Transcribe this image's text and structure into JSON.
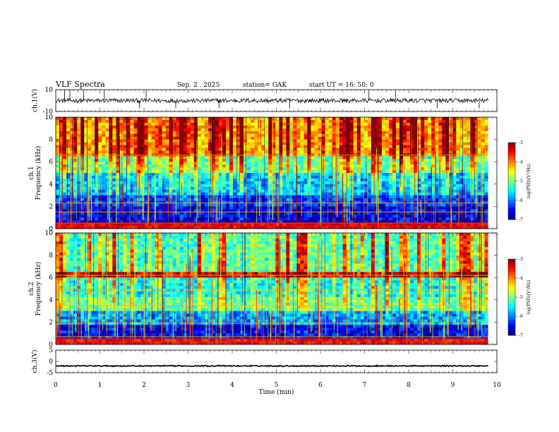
{
  "header": {
    "title": "VLF  Spectra",
    "date": "Sep. 2   . 2025",
    "station": "station= GAK",
    "start": "start  UT  =    16: 50: 0"
  },
  "chart_data": [
    {
      "type": "line",
      "name": "ch.1 waveform",
      "ylabel": "ch.1(V)",
      "ylim": [
        -10,
        10
      ],
      "yticks": [
        "10",
        "-10"
      ],
      "baseline_v": 0,
      "noise_amplitude_v": 2,
      "spikes_min": [
        0.2,
        0.32,
        0.63,
        1.1,
        1.9,
        2.05,
        2.72,
        3.7,
        5.3,
        7.1,
        7.7,
        8.65,
        9.6
      ],
      "xlim": [
        0,
        10
      ]
    },
    {
      "type": "heatmap",
      "name": "ch.1 spectrogram",
      "ylabel": "ch.1\nFrequency (kHz)",
      "ylabel_lines": [
        "ch.1",
        "Frequency (kHz)"
      ],
      "ylim": [
        0,
        10
      ],
      "yticks": [
        "0",
        "2",
        "4",
        "6",
        "8",
        "10"
      ],
      "xlim": [
        0,
        10
      ],
      "data_end_min": 9.8,
      "colorbar": {
        "label": "log(PSD)(V²/Hz)",
        "range": [
          -7,
          -3
        ],
        "ticks": [
          "-3",
          "-4",
          "-5",
          "-6",
          "-7"
        ]
      },
      "background_log_psd": [
        {
          "kHz": [
            0,
            0.6
          ],
          "level": -3.6
        },
        {
          "kHz": [
            0.6,
            2.0
          ],
          "level": -6.7
        },
        {
          "kHz": [
            2.0,
            3.0
          ],
          "level": -6.4
        },
        {
          "kHz": [
            3.0,
            5.0
          ],
          "level": -5.9
        },
        {
          "kHz": [
            5.0,
            6.5
          ],
          "level": -5.3
        },
        {
          "kHz": [
            6.5,
            10.0
          ],
          "level": -4.4
        }
      ],
      "lines_kHz": [
        0.5,
        1.5,
        2.3,
        6.6
      ],
      "sferic_density": 0.55
    },
    {
      "type": "heatmap",
      "name": "ch.2 spectrogram",
      "ylabel": "ch.2\nFrequency (kHz)",
      "ylabel_lines": [
        "ch.2",
        "Frequency (kHz)"
      ],
      "ylim": [
        0,
        10
      ],
      "yticks": [
        "0",
        "2",
        "4",
        "6",
        "8",
        "10"
      ],
      "xlim": [
        0,
        10
      ],
      "data_end_min": 9.8,
      "colorbar": {
        "label": "log(PSD)(V²/Hz)",
        "range": [
          -7,
          -3
        ],
        "ticks": [
          "-3",
          "-4",
          "-5",
          "-6",
          "-7"
        ]
      },
      "background_log_psd": [
        {
          "kHz": [
            0,
            0.6
          ],
          "level": -3.8
        },
        {
          "kHz": [
            0.6,
            1.8
          ],
          "level": -6.6
        },
        {
          "kHz": [
            1.8,
            3.0
          ],
          "level": -6.0
        },
        {
          "kHz": [
            3.0,
            4.2
          ],
          "level": -5.2
        },
        {
          "kHz": [
            4.2,
            6.0
          ],
          "level": -5.6
        },
        {
          "kHz": [
            6.0,
            6.4
          ],
          "level": -3.7
        },
        {
          "kHz": [
            6.4,
            10.0
          ],
          "level": -5.4
        }
      ],
      "lines_kHz": [
        0.7,
        1.9,
        3.5,
        4.9,
        6.2
      ],
      "sferic_density": 0.4
    },
    {
      "type": "line",
      "name": "ch.3 waveform",
      "ylabel": "ch.3(V)",
      "ylim": [
        -5,
        5
      ],
      "yticks": [
        "5",
        "0",
        "-5"
      ],
      "baseline_v": -2,
      "noise_amplitude_v": 0.25,
      "xlim": [
        0,
        10
      ],
      "xlabel": "Time  (min)",
      "xticks": [
        "0",
        "1",
        "2",
        "3",
        "4",
        "5",
        "6",
        "7",
        "8",
        "9",
        "10"
      ]
    }
  ]
}
